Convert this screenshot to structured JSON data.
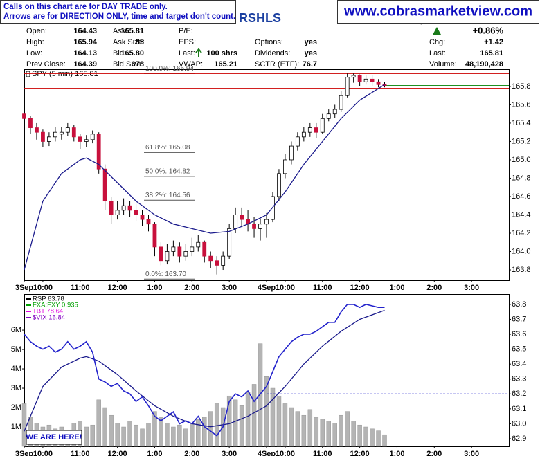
{
  "header": {
    "notice": [
      "Calls on this chart are for DAY TRADE only.",
      "Arrows are for DIRECTION ONLY, time and target don't count."
    ],
    "title": "RSHLS",
    "site": "www.cobrasmarketview.com",
    "stats": [
      [
        {
          "label": "Open:",
          "value": 164.43
        },
        {
          "label": "High:",
          "value": 165.94
        },
        {
          "label": "Low:",
          "value": 164.13
        },
        {
          "label": "Prev Close:",
          "value": 164.39
        }
      ],
      [
        {
          "label": "Ask:",
          "value": 165.81
        },
        {
          "label": "Ask Size:",
          "value": 85
        },
        {
          "label": "Bid:",
          "value": "165.80"
        },
        {
          "label": "Bid Size:",
          "value": 678
        }
      ],
      [
        {
          "label": "P/E:"
        },
        {
          "label": "EPS:"
        },
        {
          "label": "Last:",
          "value": "100 shrs",
          "arrow": "up"
        },
        {
          "label": "VWAP:",
          "value": 165.21
        }
      ],
      [
        {
          "label": "Options:",
          "value": "yes"
        },
        {
          "label": "Dividends:",
          "value": "yes"
        },
        {
          "label": "SCTR (ETF):",
          "value": 76.7
        }
      ],
      [
        {
          "value": "+0.86%",
          "arrow": "up"
        },
        {
          "label": "Chg:",
          "value": "+1.42"
        },
        {
          "label": "Last:",
          "value": 165.81
        },
        {
          "label": "Volume:",
          "value": "48,190,428"
        }
      ]
    ]
  },
  "chart_data": [
    {
      "type": "candlestick",
      "legend": "SPY (5 min) 165.81",
      "xlim": [
        0,
        780
      ],
      "xticks": [
        {
          "value": 0,
          "label": "3Sep"
        },
        {
          "value": 30,
          "label": "10:00"
        },
        {
          "value": 90,
          "label": "11:00"
        },
        {
          "value": 150,
          "label": "12:00"
        },
        {
          "value": 210,
          "label": "1:00"
        },
        {
          "value": 270,
          "label": "2:00"
        },
        {
          "value": 330,
          "label": "3:00"
        },
        {
          "value": 390,
          "label": "4Sep"
        },
        {
          "value": 420,
          "label": "10:00"
        },
        {
          "value": 480,
          "label": "11:00"
        },
        {
          "value": 540,
          "label": "12:00"
        },
        {
          "value": 600,
          "label": "1:00"
        },
        {
          "value": 660,
          "label": "2:00"
        },
        {
          "value": 720,
          "label": "3:00"
        }
      ],
      "ylim": [
        163.687,
        165.988
      ],
      "yticks": [
        165.8,
        165.6,
        165.4,
        165.2,
        {
          "value": 165,
          "label": "165.0"
        },
        164.8,
        164.6,
        164.4,
        164.2,
        {
          "value": 164,
          "label": "164.0"
        },
        163.8
      ],
      "up_color": "#ffffff",
      "down_color": "#c8103c",
      "x": [
        0,
        10,
        20,
        30,
        40,
        50,
        60,
        70,
        80,
        90,
        100,
        110,
        120,
        130,
        140,
        150,
        160,
        170,
        180,
        190,
        200,
        210,
        220,
        230,
        240,
        250,
        260,
        270,
        280,
        290,
        300,
        310,
        320,
        330,
        340,
        350,
        360,
        370,
        380,
        390,
        400,
        410,
        420,
        430,
        440,
        450,
        460,
        470,
        480,
        490,
        500,
        510,
        520,
        530,
        540,
        550,
        560,
        570,
        580
      ],
      "open": [
        165.5,
        165.45,
        165.35,
        165.3,
        165.2,
        165.25,
        165.28,
        165.3,
        165.35,
        165.25,
        165.2,
        165.22,
        165.28,
        164.9,
        164.55,
        164.4,
        164.45,
        164.5,
        164.45,
        164.4,
        164.35,
        164.3,
        164.05,
        163.9,
        164.0,
        164.05,
        163.95,
        164.0,
        164.05,
        164.1,
        163.95,
        163.9,
        163.85,
        163.95,
        164.25,
        164.4,
        164.35,
        164.3,
        164.25,
        164.3,
        164.35,
        164.6,
        164.85,
        165.0,
        165.15,
        165.25,
        165.3,
        165.35,
        165.3,
        165.45,
        165.5,
        165.55,
        165.7,
        165.9,
        165.92,
        165.85,
        165.88,
        165.85,
        165.82
      ],
      "high": [
        165.55,
        165.48,
        165.4,
        165.33,
        165.3,
        165.36,
        165.36,
        165.4,
        165.38,
        165.28,
        165.27,
        165.32,
        165.3,
        164.95,
        164.6,
        164.55,
        164.58,
        164.55,
        164.52,
        164.45,
        164.4,
        164.32,
        164.1,
        164.08,
        164.12,
        164.1,
        164.08,
        164.15,
        164.18,
        164.12,
        164.0,
        163.95,
        164.0,
        164.3,
        164.48,
        164.48,
        164.45,
        164.38,
        164.36,
        164.42,
        164.65,
        164.9,
        165.06,
        165.2,
        165.3,
        165.36,
        165.4,
        165.4,
        165.5,
        165.55,
        165.6,
        165.75,
        165.94,
        165.94,
        165.93,
        165.92,
        165.92,
        165.88,
        165.85
      ],
      "low": [
        165.38,
        165.28,
        165.22,
        165.14,
        165.15,
        165.2,
        165.22,
        165.26,
        165.2,
        165.12,
        165.14,
        165.18,
        164.85,
        164.45,
        164.3,
        164.35,
        164.4,
        164.38,
        164.33,
        164.28,
        164.22,
        163.95,
        163.85,
        163.86,
        163.95,
        163.88,
        163.9,
        163.95,
        164.0,
        163.88,
        163.82,
        163.75,
        163.8,
        163.92,
        164.2,
        164.28,
        164.22,
        164.15,
        164.12,
        164.15,
        164.32,
        164.55,
        164.8,
        164.95,
        165.1,
        165.2,
        165.25,
        165.24,
        165.28,
        165.42,
        165.46,
        165.52,
        165.68,
        165.84,
        165.8,
        165.82,
        165.8,
        165.79,
        165.79
      ],
      "close": [
        165.45,
        165.35,
        165.3,
        165.2,
        165.25,
        165.3,
        165.3,
        165.35,
        165.25,
        165.2,
        165.22,
        165.28,
        164.9,
        164.55,
        164.4,
        164.45,
        164.5,
        164.45,
        164.4,
        164.35,
        164.3,
        164.05,
        163.9,
        164.0,
        164.05,
        163.95,
        164.0,
        164.05,
        164.1,
        163.95,
        163.9,
        163.85,
        163.95,
        164.25,
        164.4,
        164.35,
        164.3,
        164.25,
        164.3,
        164.35,
        164.6,
        164.85,
        165.0,
        165.15,
        165.25,
        165.3,
        165.35,
        165.3,
        165.45,
        165.5,
        165.55,
        165.7,
        165.9,
        165.92,
        165.85,
        165.88,
        165.85,
        165.82,
        165.81
      ],
      "overlays": [
        {
          "color": "#1a1a8c",
          "x": [
            0,
            30,
            60,
            90,
            100,
            120,
            150,
            180,
            210,
            240,
            270,
            300,
            330,
            360,
            390,
            420,
            450,
            480,
            510,
            540,
            580
          ],
          "values": [
            163.8,
            164.55,
            164.85,
            165.0,
            165.02,
            164.95,
            164.75,
            164.55,
            164.4,
            164.3,
            164.25,
            164.2,
            164.22,
            164.3,
            164.4,
            164.65,
            164.95,
            165.2,
            165.45,
            165.65,
            165.82
          ]
        }
      ],
      "levels": [
        {
          "value": 165.94,
          "color": "#cc0000"
        },
        {
          "value": 165.78,
          "color": "#cc0000"
        },
        {
          "value": 165.81,
          "color": "#008000"
        },
        {
          "value": 164.4,
          "color": "#1a1acc",
          "style": "dashed"
        }
      ],
      "fib": [
        {
          "label": "100.0%: 165.94",
          "value": 165.94
        },
        {
          "label": "61.8%: 165.08",
          "value": 165.08
        },
        {
          "label": "50.0%: 164.82",
          "value": 164.82
        },
        {
          "label": "38.2%: 164.56",
          "value": 164.56
        },
        {
          "label": "0.0%: 163.70",
          "value": 163.7
        }
      ]
    },
    {
      "type": "combo",
      "legend": [
        {
          "name": "RSP  63.78",
          "color": "#000000"
        },
        {
          "name": "FXA:FXY  0.935",
          "color": "#00a000"
        },
        {
          "name": "TBT  78.64",
          "color": "#e000e0"
        },
        {
          "name": "$VIX  15.84",
          "color": "#8000c0"
        }
      ],
      "xlim": [
        0,
        780
      ],
      "xticks": [
        {
          "value": 0,
          "label": "3Sep"
        },
        {
          "value": 30,
          "label": "10:00"
        },
        {
          "value": 90,
          "label": "11:00"
        },
        {
          "value": 150,
          "label": "12:00"
        },
        {
          "value": 210,
          "label": "1:00"
        },
        {
          "value": 270,
          "label": "2:00"
        },
        {
          "value": 330,
          "label": "3:00"
        },
        {
          "value": 390,
          "label": "4Sep"
        },
        {
          "value": 420,
          "label": "10:00"
        },
        {
          "value": 480,
          "label": "11:00"
        },
        {
          "value": 540,
          "label": "12:00"
        },
        {
          "value": 600,
          "label": "1:00"
        },
        {
          "value": 660,
          "label": "2:00"
        },
        {
          "value": 720,
          "label": "3:00"
        }
      ],
      "ylim": [
        0,
        7.86
      ],
      "yticks": [
        {
          "value": 6,
          "label": "6M"
        },
        {
          "value": 5,
          "label": "5M"
        },
        {
          "value": 4,
          "label": "4M"
        },
        {
          "value": 3,
          "label": "3M"
        },
        {
          "value": 2,
          "label": "2M"
        },
        {
          "value": 1,
          "label": "1M"
        }
      ],
      "y2lim": [
        62.849,
        63.869
      ],
      "y2ticks": [
        63.8,
        63.7,
        63.6,
        63.5,
        63.4,
        63.3,
        63.2,
        63.1,
        {
          "value": 63,
          "label": "63.0"
        },
        62.9
      ],
      "x": [
        0,
        10,
        20,
        30,
        40,
        50,
        60,
        70,
        80,
        90,
        100,
        110,
        120,
        130,
        140,
        150,
        160,
        170,
        180,
        190,
        200,
        210,
        220,
        230,
        240,
        250,
        260,
        270,
        280,
        290,
        300,
        310,
        320,
        330,
        340,
        350,
        360,
        370,
        380,
        390,
        400,
        410,
        420,
        430,
        440,
        450,
        460,
        470,
        480,
        490,
        500,
        510,
        520,
        530,
        540,
        550,
        560,
        570,
        580
      ],
      "volume": {
        "color": "#b4b4b4",
        "values": [
          2.2,
          1.5,
          1.2,
          1.0,
          1.1,
          0.9,
          1.0,
          0.8,
          1.2,
          1.3,
          1.0,
          1.1,
          2.4,
          2.0,
          1.6,
          1.2,
          1.0,
          1.3,
          1.1,
          0.9,
          1.2,
          1.8,
          1.5,
          1.2,
          1.0,
          1.1,
          0.9,
          1.2,
          1.4,
          1.5,
          1.8,
          2.2,
          2.0,
          2.6,
          2.4,
          2.1,
          2.8,
          3.2,
          5.3,
          3.6,
          3.0,
          2.6,
          2.2,
          2.0,
          1.8,
          1.6,
          1.9,
          1.5,
          1.4,
          1.3,
          1.2,
          1.6,
          1.8,
          1.3,
          1.1,
          1.0,
          0.9,
          0.8,
          0.6
        ]
      },
      "series": [
        {
          "axis": "y2",
          "color": "#2222cc",
          "values": [
            63.6,
            63.55,
            63.52,
            63.5,
            63.52,
            63.48,
            63.5,
            63.55,
            63.5,
            63.52,
            63.55,
            63.48,
            63.3,
            63.28,
            63.25,
            63.27,
            63.22,
            63.2,
            63.15,
            63.18,
            63.12,
            63.05,
            63.02,
            63.05,
            63.08,
            63.0,
            63.02,
            63.0,
            63.05,
            62.98,
            62.95,
            62.92,
            62.98,
            63.15,
            63.2,
            63.18,
            63.22,
            63.15,
            63.2,
            63.25,
            63.35,
            63.45,
            63.5,
            63.55,
            63.58,
            63.6,
            63.6,
            63.62,
            63.65,
            63.68,
            63.68,
            63.75,
            63.8,
            63.8,
            63.78,
            63.8,
            63.79,
            63.78,
            63.78
          ]
        }
      ],
      "overlays": [
        {
          "color": "#1a1a8c",
          "x": [
            0,
            30,
            60,
            90,
            100,
            120,
            150,
            180,
            210,
            240,
            270,
            300,
            330,
            360,
            390,
            420,
            450,
            480,
            510,
            540,
            580
          ],
          "values": [
            62.95,
            63.25,
            63.38,
            63.44,
            63.45,
            63.42,
            63.33,
            63.22,
            63.12,
            63.05,
            63.0,
            62.98,
            63.0,
            63.05,
            63.12,
            63.25,
            63.4,
            63.52,
            63.62,
            63.7,
            63.76
          ]
        }
      ],
      "levels": [
        {
          "value": 63.2,
          "color": "#1a1acc",
          "style": "dashed"
        }
      ],
      "annotation": "WE ARE HERE!"
    }
  ]
}
